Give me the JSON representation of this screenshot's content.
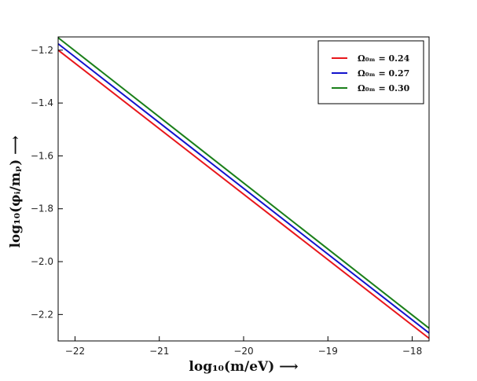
{
  "chart_data": {
    "type": "line",
    "xlabel": "log₁₀(m/eV) ⟶",
    "ylabel": "log₁₀(φᵢ/mₚ) ⟶",
    "xlim": [
      -22.2,
      -17.8
    ],
    "ylim": [
      -2.3,
      -1.15
    ],
    "xticks": [
      -22,
      -21,
      -20,
      -19,
      -18
    ],
    "xtick_labels": [
      "−22",
      "−21",
      "−20",
      "−19",
      "−18"
    ],
    "yticks": [
      -2.2,
      -2.0,
      -1.8,
      -1.6,
      -1.4,
      -1.2
    ],
    "ytick_labels": [
      "−2.2",
      "−2.0",
      "−1.8",
      "−1.6",
      "−1.4",
      "−1.2"
    ],
    "grid": false,
    "legend_position": "top-right",
    "series": [
      {
        "name": "Ω₀ₘ = 0.24",
        "color": "#e8161b",
        "x": [
          -22.2,
          -17.8
        ],
        "y": [
          -1.2,
          -2.29
        ]
      },
      {
        "name": "Ω₀ₘ = 0.27",
        "color": "#1212cc",
        "x": [
          -22.2,
          -17.8
        ],
        "y": [
          -1.176,
          -2.27
        ]
      },
      {
        "name": "Ω₀ₘ = 0.30",
        "color": "#1a7f1a",
        "x": [
          -22.2,
          -17.8
        ],
        "y": [
          -1.153,
          -2.252
        ]
      }
    ]
  }
}
